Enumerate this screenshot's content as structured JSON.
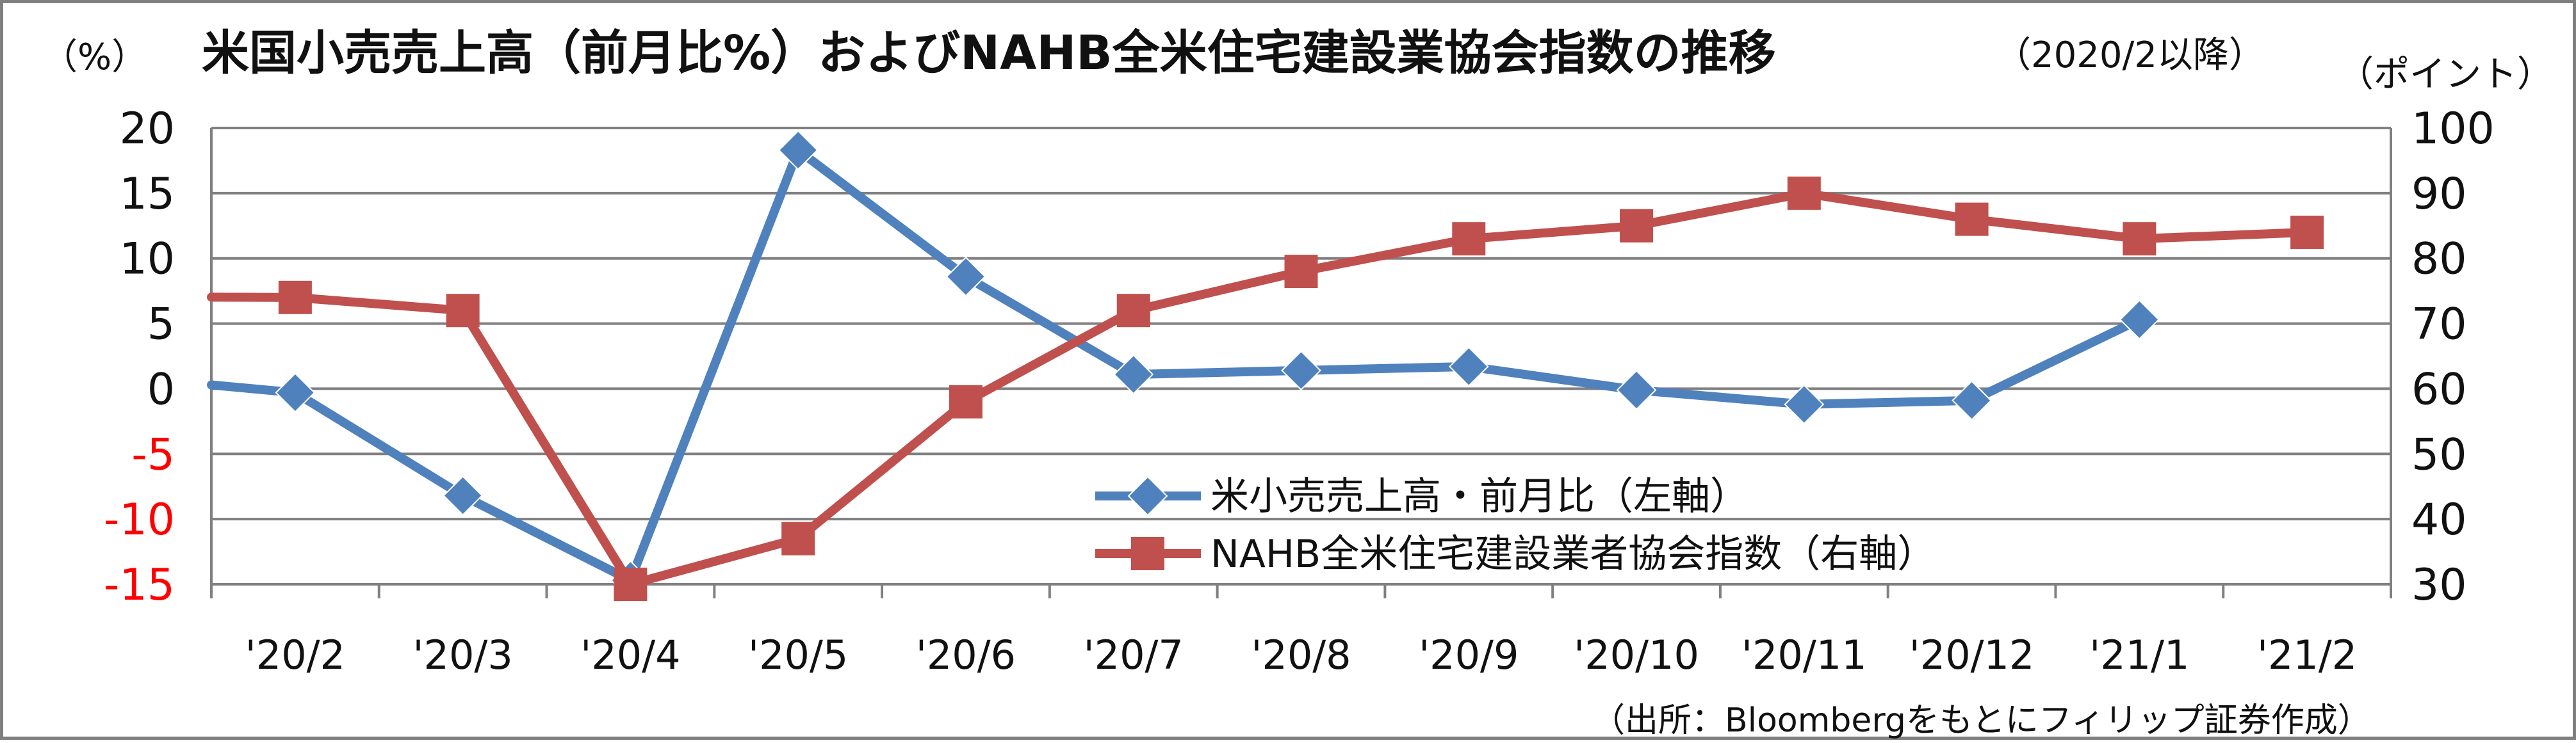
{
  "title": {
    "main": "米国小売売上高（前月比%）およびNAHB全米住宅建設業協会指数の推移",
    "sub": "（2020/2以降）"
  },
  "units": {
    "left": "（%）",
    "right": "（ポイント）"
  },
  "source": "（出所：Bloombergをもとにフィリップ証券作成）",
  "colors": {
    "series1": "#4f81bd",
    "series2": "#c0504d",
    "negative_tick": "#ff0000",
    "grid": "#808080"
  },
  "chart_data": {
    "type": "line",
    "categories": [
      "'20/2",
      "'20/3",
      "'20/4",
      "'20/5",
      "'20/6",
      "'20/7",
      "'20/8",
      "'20/9",
      "'20/10",
      "'20/11",
      "'20/12",
      "'21/1",
      "'21/2"
    ],
    "y_left": {
      "min": -15,
      "max": 20,
      "step": 5,
      "ticks": [
        "20",
        "15",
        "10",
        "5",
        "0",
        "-5",
        "-10",
        "-15"
      ]
    },
    "y_right": {
      "min": 30,
      "max": 100,
      "step": 10,
      "ticks": [
        "100",
        "90",
        "80",
        "70",
        "60",
        "50",
        "40",
        "30"
      ]
    },
    "grid": true,
    "legend_position": "center-right",
    "series": [
      {
        "name": "米小売売上高・前月比（左軸）",
        "axis": "left",
        "marker": "diamond",
        "values": [
          -0.3,
          -8.2,
          -14.7,
          18.3,
          8.6,
          1.1,
          1.4,
          1.7,
          -0.1,
          -1.2,
          -0.9,
          5.3,
          null
        ]
      },
      {
        "name": "NAHB全米住宅建設業者協会指数（右軸）",
        "axis": "right",
        "marker": "square",
        "values": [
          74,
          72,
          30,
          37,
          58,
          72,
          78,
          83,
          85,
          90,
          86,
          83,
          84
        ]
      }
    ]
  }
}
